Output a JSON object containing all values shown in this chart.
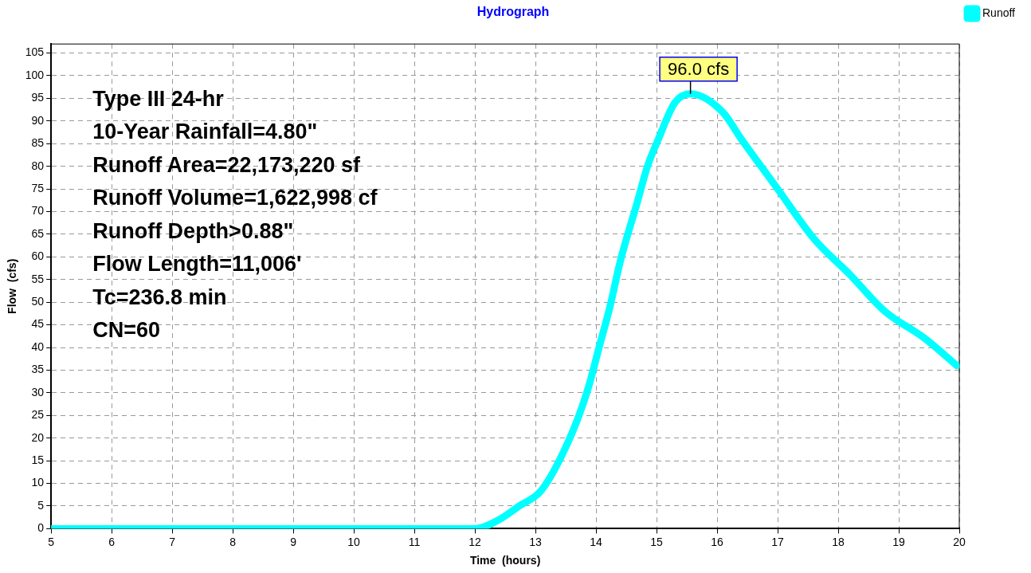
{
  "chart_data": {
    "type": "line",
    "title": "Hydrograph",
    "xlabel": "Time  (hours)",
    "ylabel": "Flow  (cfs)",
    "x": [
      5,
      12,
      12.4,
      12.73,
      13.1,
      13.6,
      13.87,
      14.05,
      14.23,
      14.4,
      14.68,
      14.85,
      15.03,
      15.3,
      15.56,
      16.09,
      16.4,
      17,
      17.6,
      18.2,
      18.77,
      19.43,
      19.96
    ],
    "series": [
      {
        "name": "Runoff",
        "color": "#00ffff",
        "values": [
          0,
          0,
          2,
          5,
          8.5,
          21,
          31,
          40,
          49,
          59,
          72,
          80,
          86,
          94,
          96,
          92,
          86,
          75,
          64,
          56,
          48,
          42,
          36
        ]
      }
    ],
    "xlim": [
      5,
      20
    ],
    "xticks": [
      5,
      6,
      7,
      8,
      9,
      10,
      11,
      12,
      13,
      14,
      15,
      16,
      17,
      18,
      19,
      20
    ],
    "ylim": [
      0,
      107
    ],
    "yticks": [
      0,
      5,
      10,
      15,
      20,
      25,
      30,
      35,
      40,
      45,
      50,
      55,
      60,
      65,
      70,
      75,
      80,
      85,
      90,
      95,
      100,
      105
    ],
    "grid": true,
    "legend": "top right",
    "marker": "none",
    "line_style": "solid",
    "annotations": [
      "Type III 24-hr",
      "10-Year Rainfall=4.80\"",
      "Runoff Area=22,173,220 sf",
      "Runoff Volume=1,622,998 cf",
      "Runoff Depth>0.88\"",
      "Flow Length=11,006'",
      "Tc=236.8 min",
      "CN=60",
      {
        "text": "96.0 cfs",
        "x": 15.56,
        "y": 96
      }
    ]
  }
}
